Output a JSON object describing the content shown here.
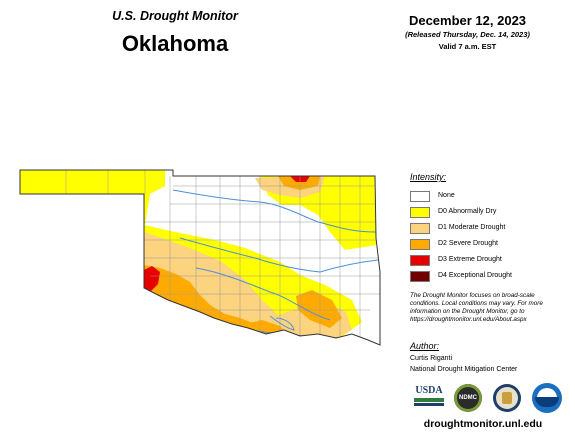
{
  "header": {
    "monitor_title": "U.S. Drought Monitor",
    "state": "Oklahoma",
    "date": "December 12, 2023",
    "released": "(Released Thursday, Dec. 14, 2023)",
    "valid": "Valid 7 a.m. EST"
  },
  "legend": {
    "title": "Intensity:",
    "items": [
      {
        "label": "None",
        "color": "#ffffff"
      },
      {
        "label": "D0 Abnormally Dry",
        "color": "#ffff00"
      },
      {
        "label": "D1 Moderate Drought",
        "color": "#fcd37f"
      },
      {
        "label": "D2 Severe Drought",
        "color": "#ffaa00"
      },
      {
        "label": "D3 Extreme Drought",
        "color": "#e60000"
      },
      {
        "label": "D4 Exceptional Drought",
        "color": "#730000"
      }
    ]
  },
  "disclaimer": "The Drought Monitor focuses on broad-scale conditions. Local conditions may vary. For more information on the Drought Monitor, go to https://droughtmonitor.unl.edu/About.aspx",
  "author": {
    "title": "Author:",
    "name": "Curtis Riganti",
    "organization": "National Drought Mitigation Center"
  },
  "logos": {
    "usda": "USDA",
    "ndmc": "NDMC"
  },
  "website": "droughtmonitor.unl.edu",
  "map": {
    "river_color": "#4f8fd6",
    "county_line_color": "#999999",
    "state_outline_color": "#333333"
  }
}
